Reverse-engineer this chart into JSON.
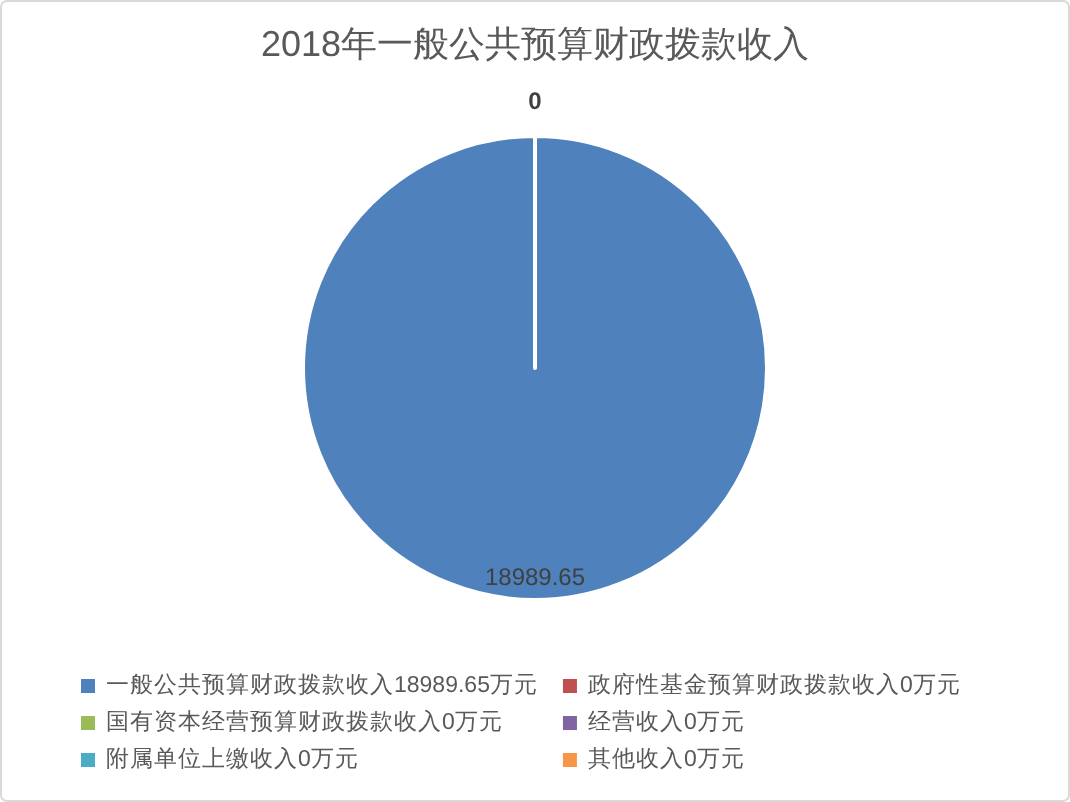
{
  "chart_data": {
    "type": "pie",
    "title": "2018年一般公共预算财政拨款收入",
    "categories": [
      "一般公共预算财政拨款收入18989.65万元",
      "政府性基金预算财政拨款收入0万元",
      "国有资本经营预算财政拨款收入0万元",
      "经营收入0万元",
      "附属单位上缴收入0万元",
      "其他收入0万元"
    ],
    "values": [
      18989.65,
      0,
      0,
      0,
      0,
      0
    ],
    "colors": [
      "#4f81bd",
      "#c0504d",
      "#9bbb59",
      "#8064a2",
      "#4bacc6",
      "#f79646"
    ],
    "value_labels": [
      "18989.65",
      "0",
      null,
      null,
      null,
      null
    ],
    "legend": "bottom"
  }
}
